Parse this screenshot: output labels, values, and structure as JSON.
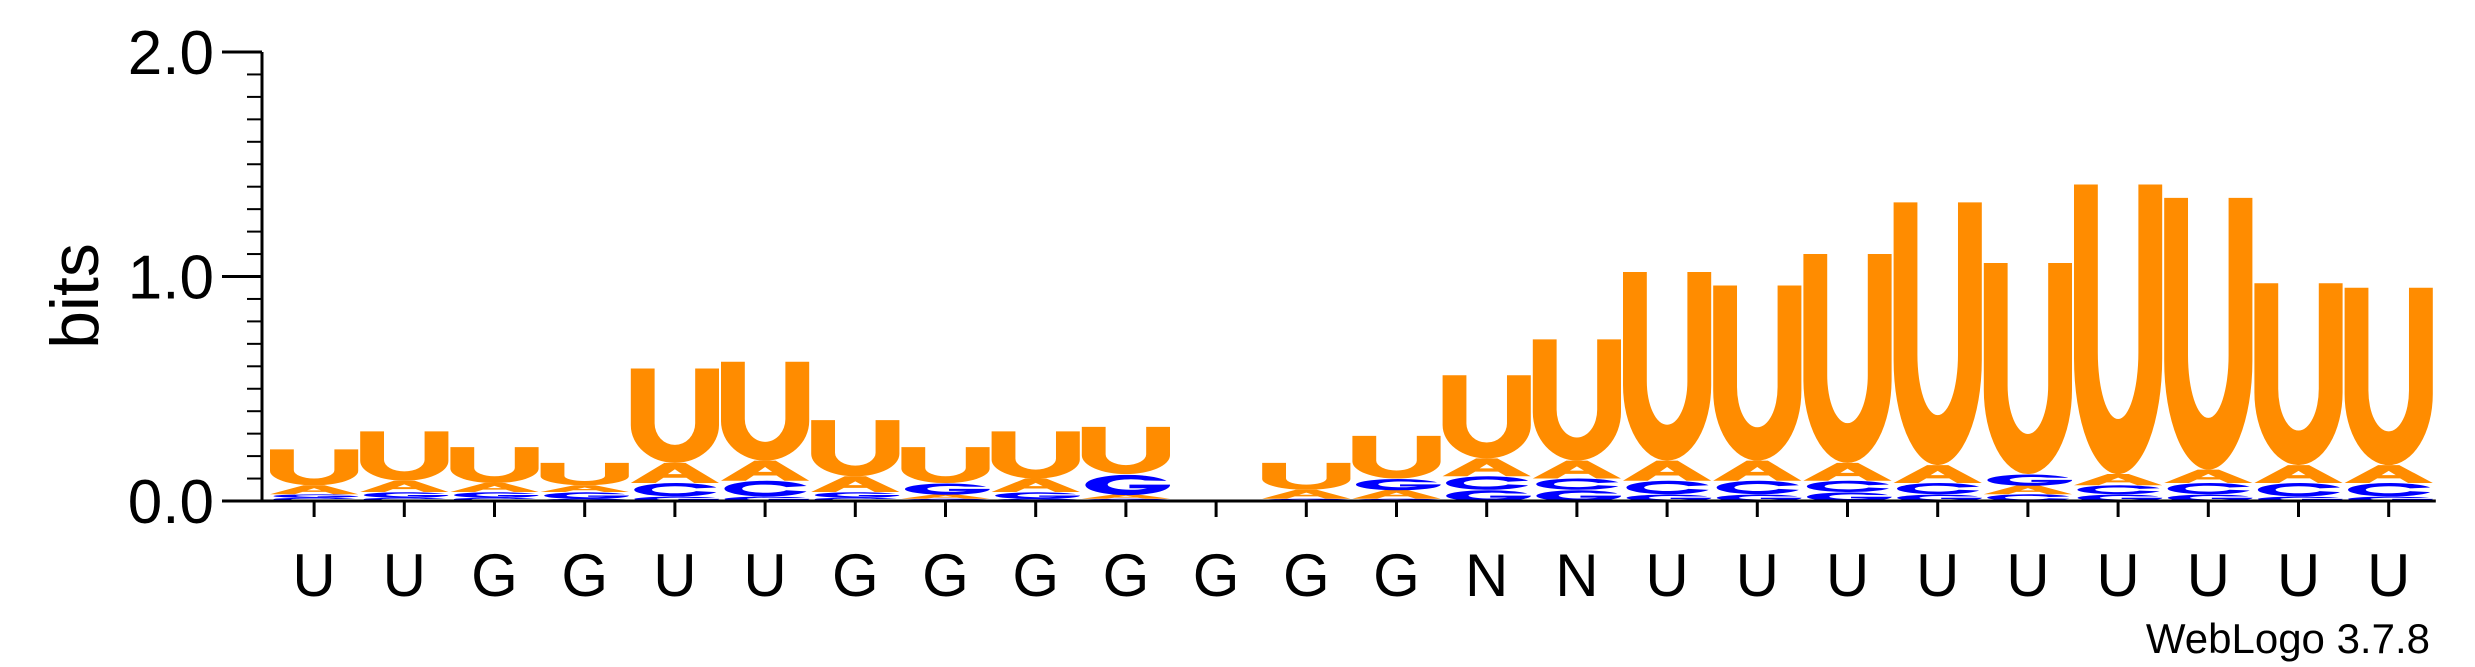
{
  "chart_data": {
    "type": "sequence-logo",
    "ylabel": "bits",
    "ylim": [
      0,
      2.0
    ],
    "yticks": [
      {
        "value": 0.0,
        "label": "0.0"
      },
      {
        "value": 1.0,
        "label": "1.0"
      },
      {
        "value": 2.0,
        "label": "2.0"
      }
    ],
    "colors": {
      "U": "#ff8c00",
      "A": "#ff8c00",
      "G": "#0000ff",
      "C": "#0000ff",
      "axis": "#000000"
    },
    "positions": [
      {
        "label": "U",
        "total": 0.23,
        "stack": [
          {
            "l": "C",
            "h": 0.015
          },
          {
            "l": "G",
            "h": 0.015
          },
          {
            "l": "A",
            "h": 0.04
          },
          {
            "l": "U",
            "h": 0.16
          }
        ]
      },
      {
        "label": "U",
        "total": 0.31,
        "stack": [
          {
            "l": "C",
            "h": 0.015
          },
          {
            "l": "G",
            "h": 0.025
          },
          {
            "l": "A",
            "h": 0.05
          },
          {
            "l": "U",
            "h": 0.22
          }
        ]
      },
      {
        "label": "G",
        "total": 0.24,
        "stack": [
          {
            "l": "C",
            "h": 0.015
          },
          {
            "l": "G",
            "h": 0.025
          },
          {
            "l": "A",
            "h": 0.04
          },
          {
            "l": "U",
            "h": 0.16
          }
        ]
      },
      {
        "label": "G",
        "total": 0.17,
        "stack": [
          {
            "l": "C",
            "h": 0.01
          },
          {
            "l": "G",
            "h": 0.03
          },
          {
            "l": "A",
            "h": 0.03
          },
          {
            "l": "U",
            "h": 0.1
          }
        ]
      },
      {
        "label": "U",
        "total": 0.59,
        "stack": [
          {
            "l": "G",
            "h": 0.02
          },
          {
            "l": "C",
            "h": 0.06
          },
          {
            "l": "A",
            "h": 0.09
          },
          {
            "l": "U",
            "h": 0.42
          }
        ]
      },
      {
        "label": "U",
        "total": 0.62,
        "stack": [
          {
            "l": "G",
            "h": 0.02
          },
          {
            "l": "C",
            "h": 0.07
          },
          {
            "l": "A",
            "h": 0.09
          },
          {
            "l": "U",
            "h": 0.44
          }
        ]
      },
      {
        "label": "G",
        "total": 0.36,
        "stack": [
          {
            "l": "C",
            "h": 0.015
          },
          {
            "l": "G",
            "h": 0.025
          },
          {
            "l": "A",
            "h": 0.07
          },
          {
            "l": "U",
            "h": 0.25
          }
        ]
      },
      {
        "label": "G",
        "total": 0.24,
        "stack": [
          {
            "l": "C",
            "h": 0.01
          },
          {
            "l": "A",
            "h": 0.02
          },
          {
            "l": "G",
            "h": 0.05
          },
          {
            "l": "U",
            "h": 0.16
          }
        ]
      },
      {
        "label": "G",
        "total": 0.31,
        "stack": [
          {
            "l": "C",
            "h": 0.01
          },
          {
            "l": "G",
            "h": 0.03
          },
          {
            "l": "A",
            "h": 0.06
          },
          {
            "l": "U",
            "h": 0.21
          }
        ]
      },
      {
        "label": "G",
        "total": 0.33,
        "stack": [
          {
            "l": "C",
            "h": 0.01
          },
          {
            "l": "A",
            "h": 0.02
          },
          {
            "l": "G",
            "h": 0.09
          },
          {
            "l": "U",
            "h": 0.21
          }
        ]
      },
      {
        "label": "G",
        "total": 0.0,
        "stack": []
      },
      {
        "label": "G",
        "total": 0.17,
        "stack": [
          {
            "l": "C",
            "h": 0.01
          },
          {
            "l": "A",
            "h": 0.04
          },
          {
            "l": "U",
            "h": 0.12
          }
        ]
      },
      {
        "label": "G",
        "total": 0.29,
        "stack": [
          {
            "l": "C",
            "h": 0.01
          },
          {
            "l": "A",
            "h": 0.04
          },
          {
            "l": "G",
            "h": 0.05
          },
          {
            "l": "U",
            "h": 0.19
          }
        ]
      },
      {
        "label": "N",
        "total": 0.56,
        "stack": [
          {
            "l": "G",
            "h": 0.05
          },
          {
            "l": "C",
            "h": 0.06
          },
          {
            "l": "A",
            "h": 0.08
          },
          {
            "l": "U",
            "h": 0.37
          }
        ]
      },
      {
        "label": "N",
        "total": 0.72,
        "stack": [
          {
            "l": "G",
            "h": 0.05
          },
          {
            "l": "C",
            "h": 0.05
          },
          {
            "l": "A",
            "h": 0.08
          },
          {
            "l": "U",
            "h": 0.54
          }
        ]
      },
      {
        "label": "U",
        "total": 1.02,
        "stack": [
          {
            "l": "G",
            "h": 0.03
          },
          {
            "l": "C",
            "h": 0.06
          },
          {
            "l": "A",
            "h": 0.09
          },
          {
            "l": "U",
            "h": 0.84
          }
        ]
      },
      {
        "label": "U",
        "total": 0.96,
        "stack": [
          {
            "l": "G",
            "h": 0.03
          },
          {
            "l": "C",
            "h": 0.06
          },
          {
            "l": "A",
            "h": 0.09
          },
          {
            "l": "U",
            "h": 0.78
          }
        ]
      },
      {
        "label": "U",
        "total": 1.1,
        "stack": [
          {
            "l": "G",
            "h": 0.04
          },
          {
            "l": "C",
            "h": 0.05
          },
          {
            "l": "A",
            "h": 0.08
          },
          {
            "l": "U",
            "h": 0.93
          }
        ]
      },
      {
        "label": "U",
        "total": 1.33,
        "stack": [
          {
            "l": "G",
            "h": 0.03
          },
          {
            "l": "C",
            "h": 0.05
          },
          {
            "l": "A",
            "h": 0.08
          },
          {
            "l": "U",
            "h": 1.17
          }
        ]
      },
      {
        "label": "U",
        "total": 1.06,
        "stack": [
          {
            "l": "C",
            "h": 0.03
          },
          {
            "l": "A",
            "h": 0.04
          },
          {
            "l": "G",
            "h": 0.05
          },
          {
            "l": "U",
            "h": 0.94
          }
        ]
      },
      {
        "label": "U",
        "total": 1.41,
        "stack": [
          {
            "l": "G",
            "h": 0.03
          },
          {
            "l": "C",
            "h": 0.04
          },
          {
            "l": "A",
            "h": 0.05
          },
          {
            "l": "U",
            "h": 1.29
          }
        ]
      },
      {
        "label": "U",
        "total": 1.35,
        "stack": [
          {
            "l": "G",
            "h": 0.03
          },
          {
            "l": "C",
            "h": 0.05
          },
          {
            "l": "A",
            "h": 0.06
          },
          {
            "l": "U",
            "h": 1.21
          }
        ]
      },
      {
        "label": "U",
        "total": 0.97,
        "stack": [
          {
            "l": "G",
            "h": 0.02
          },
          {
            "l": "C",
            "h": 0.06
          },
          {
            "l": "A",
            "h": 0.08
          },
          {
            "l": "U",
            "h": 0.81
          }
        ]
      },
      {
        "label": "U",
        "total": 0.95,
        "stack": [
          {
            "l": "G",
            "h": 0.02
          },
          {
            "l": "C",
            "h": 0.06
          },
          {
            "l": "A",
            "h": 0.08
          },
          {
            "l": "U",
            "h": 0.79
          }
        ]
      }
    ]
  },
  "footer": {
    "credit": "WebLogo 3.7.8"
  }
}
